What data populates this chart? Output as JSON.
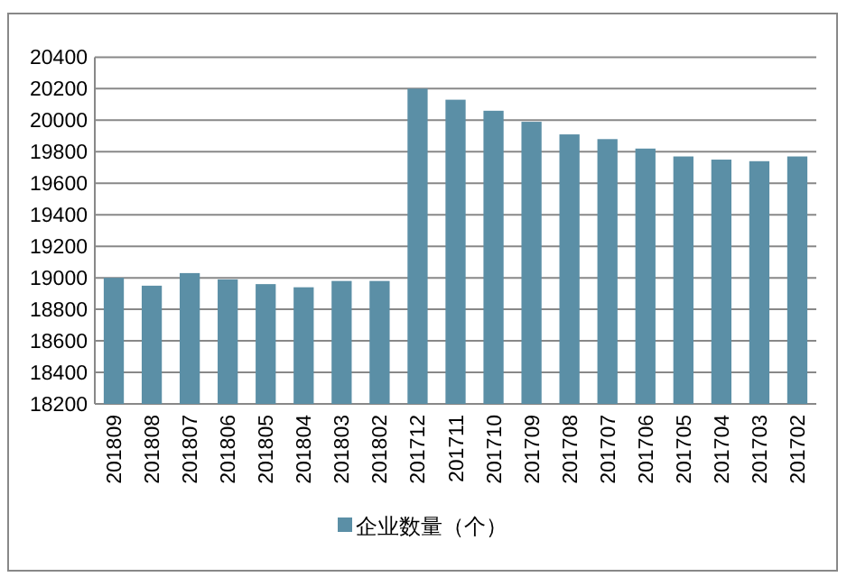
{
  "chart_data": {
    "type": "bar",
    "categories": [
      "201809",
      "201808",
      "201807",
      "201806",
      "201805",
      "201804",
      "201803",
      "201802",
      "201712",
      "201711",
      "201710",
      "201709",
      "201708",
      "201707",
      "201706",
      "201705",
      "201704",
      "201703",
      "201702"
    ],
    "series": [
      {
        "name": "企业数量（个）",
        "color": "#5b8fa6",
        "values": [
          19000,
          18950,
          19030,
          18990,
          18960,
          18940,
          18980,
          18980,
          20200,
          20130,
          20060,
          19990,
          19910,
          19880,
          19820,
          19770,
          19750,
          19740,
          19770
        ]
      }
    ],
    "ylim": [
      18200,
      20400
    ],
    "yticks": [
      18200,
      18400,
      18600,
      18800,
      19000,
      19200,
      19400,
      19600,
      19800,
      20000,
      20200,
      20400
    ],
    "grid": "y",
    "legend": "bottom"
  }
}
